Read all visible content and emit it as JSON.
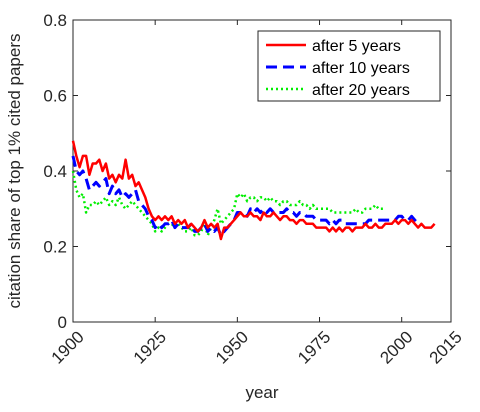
{
  "chart_data": {
    "type": "line",
    "title": "",
    "xlabel": "year",
    "ylabel": "citation share of top 1% cited papers",
    "xlim": [
      1900,
      2015
    ],
    "ylim": [
      0,
      0.8
    ],
    "xticks": [
      1900,
      1925,
      1950,
      1975,
      2000,
      2015
    ],
    "yticks": [
      0,
      0.2,
      0.4,
      0.6,
      0.8
    ],
    "xtick_labels": [
      "1900",
      "1925",
      "1950",
      "1975",
      "2000",
      "2015"
    ],
    "ytick_labels": [
      "0",
      "0.2",
      "0.4",
      "0.6",
      "0.8"
    ],
    "grid": false,
    "legend_position": "top-right",
    "series": [
      {
        "name": "after 5 years",
        "color": "#ff0000",
        "dash": "solid",
        "x": [
          1900,
          1901,
          1902,
          1903,
          1904,
          1905,
          1906,
          1907,
          1908,
          1909,
          1910,
          1911,
          1912,
          1913,
          1914,
          1915,
          1916,
          1917,
          1918,
          1919,
          1920,
          1921,
          1922,
          1923,
          1924,
          1925,
          1926,
          1927,
          1928,
          1929,
          1930,
          1931,
          1932,
          1933,
          1934,
          1935,
          1936,
          1937,
          1938,
          1939,
          1940,
          1941,
          1942,
          1943,
          1944,
          1945,
          1946,
          1947,
          1948,
          1949,
          1950,
          1951,
          1952,
          1953,
          1954,
          1955,
          1956,
          1957,
          1958,
          1959,
          1960,
          1961,
          1962,
          1963,
          1964,
          1965,
          1966,
          1967,
          1968,
          1969,
          1970,
          1971,
          1972,
          1973,
          1974,
          1975,
          1976,
          1977,
          1978,
          1979,
          1980,
          1981,
          1982,
          1983,
          1984,
          1985,
          1986,
          1987,
          1988,
          1989,
          1990,
          1991,
          1992,
          1993,
          1994,
          1995,
          1996,
          1997,
          1998,
          1999,
          2000,
          2001,
          2002,
          2003,
          2004,
          2005,
          2006,
          2007,
          2008,
          2009,
          2010
        ],
        "values": [
          0.48,
          0.44,
          0.41,
          0.44,
          0.44,
          0.39,
          0.42,
          0.42,
          0.43,
          0.4,
          0.42,
          0.38,
          0.39,
          0.37,
          0.39,
          0.38,
          0.43,
          0.38,
          0.39,
          0.36,
          0.37,
          0.35,
          0.33,
          0.3,
          0.28,
          0.27,
          0.28,
          0.27,
          0.28,
          0.27,
          0.28,
          0.26,
          0.27,
          0.26,
          0.27,
          0.25,
          0.26,
          0.25,
          0.24,
          0.25,
          0.27,
          0.25,
          0.26,
          0.25,
          0.26,
          0.22,
          0.25,
          0.25,
          0.26,
          0.27,
          0.28,
          0.29,
          0.28,
          0.28,
          0.29,
          0.28,
          0.28,
          0.27,
          0.29,
          0.28,
          0.28,
          0.29,
          0.28,
          0.27,
          0.28,
          0.28,
          0.27,
          0.27,
          0.26,
          0.27,
          0.27,
          0.26,
          0.26,
          0.26,
          0.25,
          0.25,
          0.25,
          0.25,
          0.24,
          0.25,
          0.24,
          0.25,
          0.24,
          0.25,
          0.25,
          0.24,
          0.25,
          0.25,
          0.25,
          0.26,
          0.25,
          0.25,
          0.26,
          0.25,
          0.25,
          0.26,
          0.26,
          0.26,
          0.27,
          0.26,
          0.27,
          0.27,
          0.26,
          0.27,
          0.26,
          0.25,
          0.26,
          0.25,
          0.25,
          0.25,
          0.26
        ]
      },
      {
        "name": "after 10 years",
        "color": "#0000ff",
        "dash": "dashed",
        "x": [
          1900,
          1901,
          1902,
          1903,
          1904,
          1905,
          1906,
          1907,
          1908,
          1909,
          1910,
          1911,
          1912,
          1913,
          1914,
          1915,
          1916,
          1917,
          1918,
          1919,
          1920,
          1921,
          1922,
          1923,
          1924,
          1925,
          1926,
          1927,
          1928,
          1929,
          1930,
          1931,
          1932,
          1933,
          1934,
          1935,
          1936,
          1937,
          1938,
          1939,
          1940,
          1941,
          1942,
          1943,
          1944,
          1945,
          1946,
          1947,
          1948,
          1949,
          1950,
          1951,
          1952,
          1953,
          1954,
          1955,
          1956,
          1957,
          1958,
          1959,
          1960,
          1961,
          1962,
          1963,
          1964,
          1965,
          1966,
          1967,
          1968,
          1969,
          1970,
          1971,
          1972,
          1973,
          1974,
          1975,
          1976,
          1977,
          1978,
          1979,
          1980,
          1981,
          1982,
          1983,
          1984,
          1985,
          1986,
          1987,
          1988,
          1989,
          1990,
          1991,
          1992,
          1993,
          1994,
          1995,
          1996,
          1997,
          1998,
          1999,
          2000,
          2001,
          2002,
          2003,
          2004,
          2005
        ],
        "values": [
          0.44,
          0.4,
          0.39,
          0.4,
          0.38,
          0.35,
          0.36,
          0.37,
          0.36,
          0.37,
          0.38,
          0.34,
          0.36,
          0.34,
          0.35,
          0.33,
          0.34,
          0.33,
          0.34,
          0.35,
          0.32,
          0.31,
          0.3,
          0.28,
          0.27,
          0.25,
          0.26,
          0.25,
          0.26,
          0.26,
          0.27,
          0.25,
          0.26,
          0.25,
          0.25,
          0.25,
          0.26,
          0.24,
          0.24,
          0.25,
          0.26,
          0.24,
          0.25,
          0.24,
          0.25,
          0.23,
          0.24,
          0.25,
          0.26,
          0.27,
          0.29,
          0.29,
          0.29,
          0.28,
          0.3,
          0.29,
          0.3,
          0.29,
          0.3,
          0.29,
          0.3,
          0.29,
          0.29,
          0.29,
          0.29,
          0.3,
          0.29,
          0.29,
          0.28,
          0.29,
          0.29,
          0.28,
          0.28,
          0.28,
          0.27,
          0.27,
          0.27,
          0.27,
          0.26,
          0.27,
          0.26,
          0.27,
          0.27,
          0.26,
          0.26,
          0.26,
          0.26,
          0.26,
          0.26,
          0.26,
          0.27,
          0.27,
          0.27,
          0.27,
          0.27,
          0.27,
          0.27,
          0.27,
          0.27,
          0.28,
          0.28,
          0.27,
          0.27,
          0.28,
          0.27,
          0.28
        ]
      },
      {
        "name": "after 20 years",
        "color": "#00ee00",
        "dash": "dotted",
        "x": [
          1900,
          1901,
          1902,
          1903,
          1904,
          1905,
          1906,
          1907,
          1908,
          1909,
          1910,
          1911,
          1912,
          1913,
          1914,
          1915,
          1916,
          1917,
          1918,
          1919,
          1920,
          1921,
          1922,
          1923,
          1924,
          1925,
          1926,
          1927,
          1928,
          1929,
          1930,
          1931,
          1932,
          1933,
          1934,
          1935,
          1936,
          1937,
          1938,
          1939,
          1940,
          1941,
          1942,
          1943,
          1944,
          1945,
          1946,
          1947,
          1948,
          1949,
          1950,
          1951,
          1952,
          1953,
          1954,
          1955,
          1956,
          1957,
          1958,
          1959,
          1960,
          1961,
          1962,
          1963,
          1964,
          1965,
          1966,
          1967,
          1968,
          1969,
          1970,
          1971,
          1972,
          1973,
          1974,
          1975,
          1976,
          1977,
          1978,
          1979,
          1980,
          1981,
          1982,
          1983,
          1984,
          1985,
          1986,
          1987,
          1988,
          1989,
          1990,
          1991,
          1992,
          1993,
          1994,
          1995
        ],
        "values": [
          0.4,
          0.35,
          0.33,
          0.34,
          0.29,
          0.31,
          0.31,
          0.32,
          0.31,
          0.32,
          0.33,
          0.31,
          0.32,
          0.31,
          0.33,
          0.31,
          0.3,
          0.31,
          0.32,
          0.31,
          0.3,
          0.29,
          0.28,
          0.27,
          0.26,
          0.24,
          0.25,
          0.24,
          0.25,
          0.26,
          0.26,
          0.25,
          0.26,
          0.25,
          0.24,
          0.24,
          0.25,
          0.23,
          0.23,
          0.24,
          0.26,
          0.23,
          0.25,
          0.27,
          0.3,
          0.26,
          0.27,
          0.28,
          0.29,
          0.3,
          0.34,
          0.33,
          0.34,
          0.32,
          0.33,
          0.33,
          0.32,
          0.33,
          0.33,
          0.32,
          0.33,
          0.32,
          0.32,
          0.31,
          0.32,
          0.32,
          0.31,
          0.31,
          0.31,
          0.32,
          0.31,
          0.31,
          0.3,
          0.31,
          0.3,
          0.3,
          0.3,
          0.3,
          0.3,
          0.29,
          0.29,
          0.29,
          0.29,
          0.29,
          0.29,
          0.29,
          0.3,
          0.29,
          0.29,
          0.3,
          0.3,
          0.3,
          0.31,
          0.3,
          0.3,
          0.3
        ]
      }
    ]
  }
}
